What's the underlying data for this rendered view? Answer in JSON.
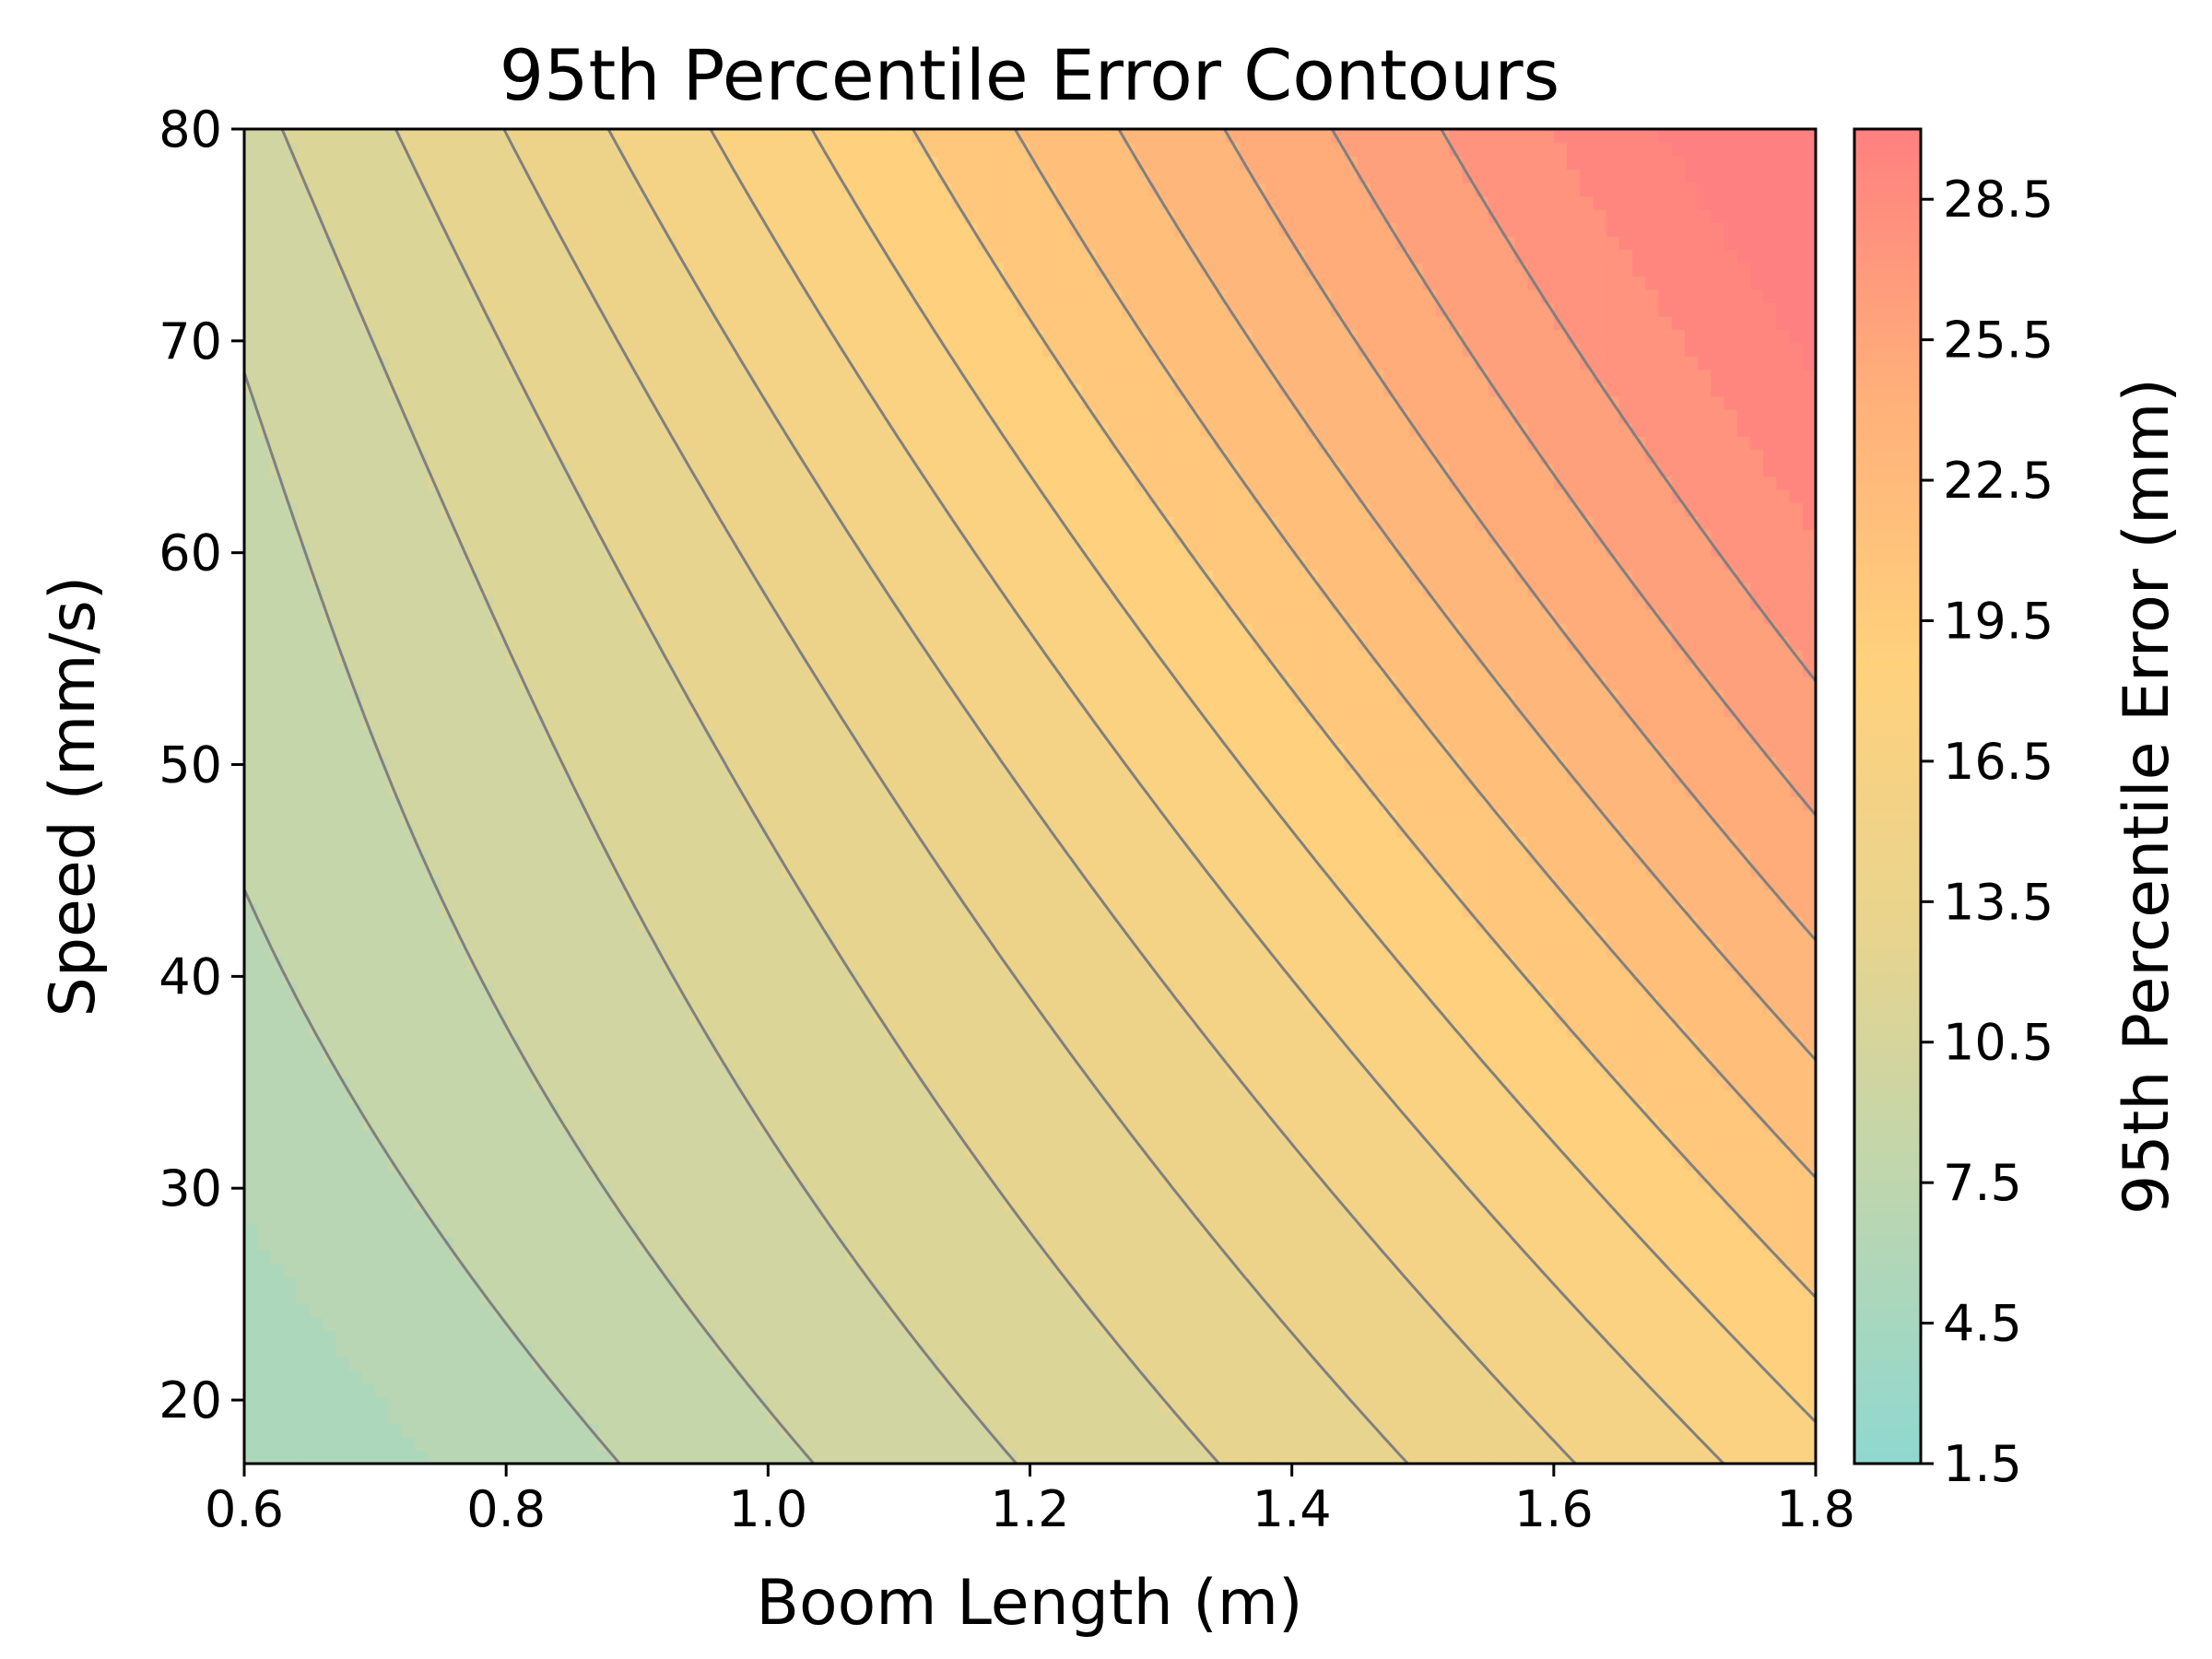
{
  "chart_data": {
    "type": "heatmap",
    "subtype": "filled-contour",
    "title": "95th Percentile Error Contours",
    "xlabel": "Boom Length (m)",
    "ylabel": "Speed (mm/s)",
    "xlim": [
      0.6,
      1.8
    ],
    "ylim": [
      17,
      80
    ],
    "x_ticks": [
      0.6,
      0.8,
      1.0,
      1.2,
      1.4,
      1.6,
      1.8
    ],
    "x_tick_labels": [
      "0.6",
      "0.8",
      "1.0",
      "1.2",
      "1.4",
      "1.6",
      "1.8"
    ],
    "y_ticks": [
      20,
      30,
      40,
      50,
      60,
      70,
      80
    ],
    "y_tick_labels": [
      "20",
      "30",
      "40",
      "50",
      "60",
      "70",
      "80"
    ],
    "grid": false,
    "colorbar": {
      "label": "95th Percentile Error (mm)",
      "range": [
        1.5,
        30
      ],
      "level_step": 1.5,
      "ticks": [
        1.5,
        4.5,
        7.5,
        10.5,
        13.5,
        16.5,
        19.5,
        22.5,
        25.5,
        28.5
      ],
      "tick_labels": [
        "1.5",
        "4.5",
        "7.5",
        "10.5",
        "13.5",
        "16.5",
        "19.5",
        "22.5",
        "25.5",
        "28.5"
      ],
      "colormap": [
        "#8fd8d0",
        "#bcd6b0",
        "#e8d48e",
        "#ffd17d",
        "#ffb07a",
        "#ff8080"
      ],
      "position": "right"
    },
    "contour_levels": [
      4.5,
      7.5,
      9.0,
      10.5,
      12.0,
      13.5,
      15.0,
      16.5,
      18.0,
      19.5,
      21.0,
      22.5,
      24.0,
      25.5,
      27.0
    ],
    "model_description_points": [
      {
        "x": 0.6,
        "y": 17,
        "value": 4.0
      },
      {
        "x": 1.8,
        "y": 80,
        "value": 29.5
      }
    ]
  }
}
